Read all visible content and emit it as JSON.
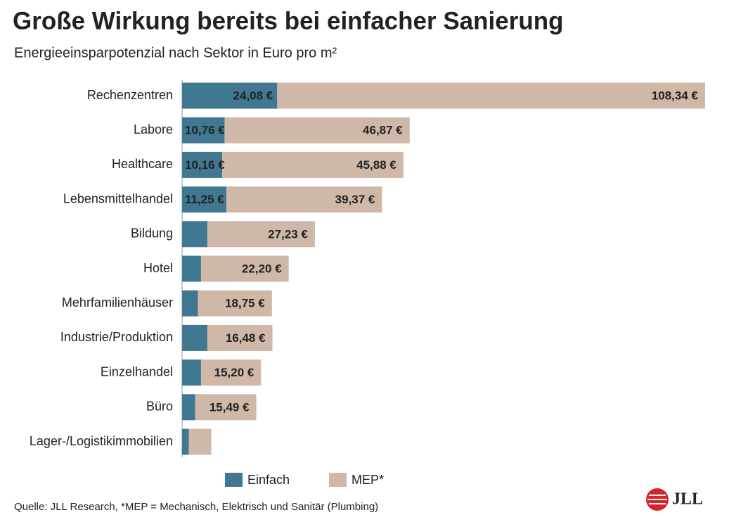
{
  "chart_data": {
    "type": "bar",
    "orientation": "horizontal",
    "stacked": true,
    "title": "Große Wirkung bereits bei einfacher Sanierung",
    "subtitle": "Energieeinsparpotenzial nach Sektor in Euro pro m²",
    "categories": [
      "Rechenzentren",
      "Labore",
      "Healthcare",
      "Lebensmittelhandel",
      "Bildung",
      "Hotel",
      "Mehrfamilienhäuser",
      "Industrie/Produktion",
      "Einzelhandel",
      "Büro",
      "Lager-/Logistikimmobilien"
    ],
    "series": [
      {
        "name": "Einfach",
        "color": "#3f7890",
        "values": [
          24.08,
          10.76,
          10.16,
          11.25,
          6.4,
          4.8,
          4.0,
          6.4,
          4.8,
          3.3,
          1.7
        ],
        "value_labels": [
          "24,08 €",
          "10,76 €",
          "10,16 €",
          "11,25 €",
          null,
          null,
          null,
          null,
          null,
          null,
          null
        ]
      },
      {
        "name": "MEP*",
        "color": "#cfb8a8",
        "values": [
          108.34,
          46.87,
          45.88,
          39.37,
          27.23,
          22.2,
          18.75,
          16.48,
          15.2,
          15.49,
          5.7
        ],
        "value_labels": [
          "108,34 €",
          "46,87 €",
          "45,88 €",
          "39,37 €",
          "27,23 €",
          "22,20 €",
          "18,75 €",
          "16,48 €",
          "15,20 €",
          "15,49 €",
          null
        ]
      }
    ],
    "source": "Quelle: JLL Research, *MEP = Mechanisch, Elektrisch und Sanitär (Plumbing)",
    "logo": "JLL"
  }
}
